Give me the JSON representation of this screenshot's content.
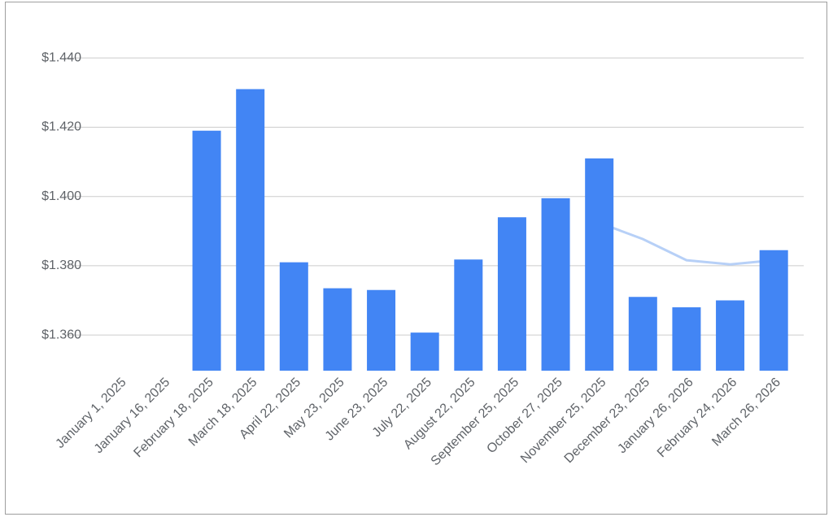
{
  "chart_data": {
    "type": "bar",
    "categories": [
      "January 1, 2025",
      "January 16, 2025",
      "February 18, 2025",
      "March 18, 2025",
      "April 22, 2025",
      "May 23, 2025",
      "June 23, 2025",
      "July 22, 2025",
      "August 22, 2025",
      "September 25, 2025",
      "October 27, 2025",
      "November 25, 2025",
      "December 23, 2025",
      "January 26, 2026",
      "February 24, 2026",
      "March 26, 2026"
    ],
    "series": [
      {
        "type": "line",
        "color": "#b7d0f7",
        "values": [
          null,
          null,
          null,
          null,
          null,
          null,
          null,
          null,
          null,
          null,
          null,
          1.3924,
          1.3877,
          1.3816,
          1.3804,
          1.3816
        ]
      },
      {
        "type": "bar",
        "color": "#4285f4",
        "values": [
          null,
          null,
          1.419,
          1.431,
          1.381,
          1.3735,
          1.373,
          1.3607,
          1.3818,
          1.394,
          1.3995,
          1.411,
          1.371,
          1.368,
          1.37,
          1.3845
        ]
      }
    ],
    "ylim": [
      1.3497,
      1.445
    ],
    "yticks": [
      {
        "value": 1.36,
        "label": "$1.360"
      },
      {
        "value": 1.38,
        "label": "$1.380"
      },
      {
        "value": 1.4,
        "label": "$1.400"
      },
      {
        "value": 1.42,
        "label": "$1.420"
      },
      {
        "value": 1.44,
        "label": "$1.440"
      }
    ],
    "grid": true
  }
}
